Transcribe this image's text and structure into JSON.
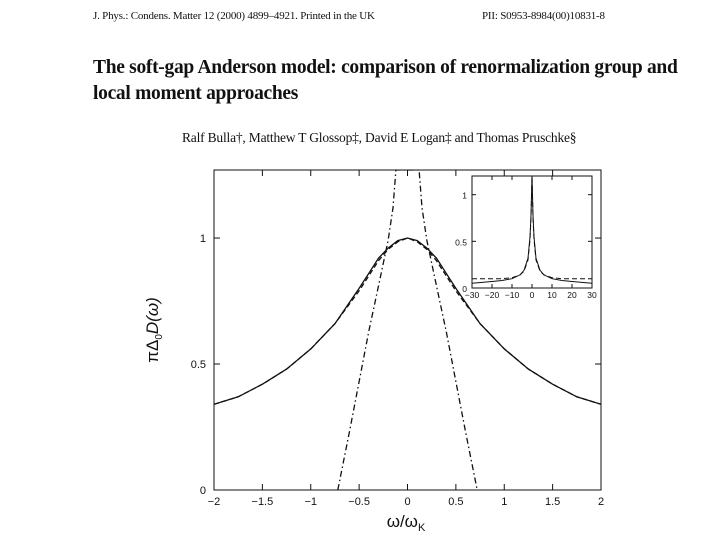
{
  "header": {
    "journal_line": "J. Phys.: Condens. Matter 12 (2000) 4899–4921. Printed in the UK",
    "pii": "PII: S0953-8984(00)10831-8"
  },
  "paper": {
    "title": "The soft-gap Anderson model: comparison of renormalization group and local moment approaches",
    "authors": "Ralf Bulla†, Matthew T Glossop‡, David E Logan‡ and Thomas Pruschke§"
  },
  "chart_data": [
    {
      "type": "line",
      "title": "",
      "xlabel": "ω/ω",
      "xlabel_sub": "K",
      "ylabel": "πΔ",
      "ylabel_sub": "0",
      "ylabel_tail": "D(ω)",
      "xlim": [
        -2,
        2
      ],
      "ylim": [
        0,
        1.27
      ],
      "x_ticks": [
        -2,
        -1.5,
        -1,
        -0.5,
        0,
        0.5,
        1,
        1.5,
        2
      ],
      "x_tick_labels": [
        "−2",
        "−1.5",
        "−1",
        "−0.5",
        "0",
        "0.5",
        "1",
        "1.5",
        "2"
      ],
      "y_ticks": [
        0,
        0.5,
        1
      ],
      "y_tick_labels": [
        "0",
        "0.5",
        "1"
      ],
      "grid": false,
      "series": [
        {
          "style": "solid",
          "x": [
            -2,
            -1.75,
            -1.5,
            -1.25,
            -1,
            -0.75,
            -0.5,
            -0.4,
            -0.3,
            -0.2,
            -0.1,
            0,
            0.1,
            0.2,
            0.3,
            0.4,
            0.5,
            0.75,
            1,
            1.25,
            1.5,
            1.75,
            2
          ],
          "y": [
            0.34,
            0.37,
            0.42,
            0.48,
            0.56,
            0.66,
            0.8,
            0.86,
            0.92,
            0.96,
            0.99,
            1.0,
            0.99,
            0.96,
            0.92,
            0.86,
            0.8,
            0.66,
            0.56,
            0.48,
            0.42,
            0.37,
            0.34
          ]
        },
        {
          "style": "dashed",
          "x": [
            -2,
            -1.75,
            -1.5,
            -1.25,
            -1,
            -0.75,
            -0.5,
            -0.4,
            -0.3,
            -0.2,
            -0.1,
            0,
            0.1,
            0.2,
            0.3,
            0.4,
            0.5,
            0.75,
            1,
            1.25,
            1.5,
            1.75,
            2
          ],
          "y": [
            0.34,
            0.37,
            0.42,
            0.48,
            0.56,
            0.66,
            0.79,
            0.85,
            0.91,
            0.955,
            0.985,
            1.0,
            0.985,
            0.955,
            0.91,
            0.85,
            0.79,
            0.66,
            0.56,
            0.48,
            0.42,
            0.37,
            0.34
          ]
        },
        {
          "style": "dash-dot",
          "x": [
            -0.72,
            -0.6,
            -0.5,
            -0.4,
            -0.3,
            -0.2,
            -0.15,
            -0.12,
            0.12,
            0.15,
            0.2,
            0.3,
            0.4,
            0.5,
            0.6,
            0.72
          ],
          "y": [
            0.0,
            0.23,
            0.43,
            0.63,
            0.81,
            0.99,
            1.12,
            1.27,
            1.27,
            1.12,
            0.99,
            0.81,
            0.63,
            0.43,
            0.23,
            0.0
          ]
        }
      ]
    },
    {
      "type": "line",
      "title": "",
      "inset": true,
      "xlim": [
        -30,
        30
      ],
      "ylim": [
        0,
        1.2
      ],
      "x_ticks": [
        -30,
        -20,
        -10,
        0,
        10,
        20,
        30
      ],
      "x_tick_labels": [
        "−30",
        "−20",
        "−10",
        "0",
        "10",
        "20",
        "30"
      ],
      "y_ticks": [
        0,
        0.5,
        1
      ],
      "y_tick_labels": [
        "0",
        "0.5",
        "1"
      ],
      "series": [
        {
          "style": "solid",
          "x": [
            -30,
            -25,
            -20,
            -15,
            -10,
            -6,
            -4,
            -2,
            -1,
            -0.5,
            0,
            0.5,
            1,
            2,
            4,
            6,
            10,
            15,
            20,
            25,
            30
          ],
          "y": [
            0.05,
            0.06,
            0.07,
            0.08,
            0.1,
            0.14,
            0.19,
            0.32,
            0.55,
            0.78,
            1.2,
            0.78,
            0.55,
            0.32,
            0.19,
            0.14,
            0.1,
            0.08,
            0.07,
            0.06,
            0.05
          ]
        },
        {
          "style": "dashed",
          "x": [
            -30,
            -25,
            -20,
            -15,
            -10,
            -6,
            -4,
            -2,
            -1,
            -0.5,
            0,
            0.5,
            1,
            2,
            4,
            6,
            10,
            15,
            20,
            25,
            30
          ],
          "y": [
            0.1,
            0.1,
            0.1,
            0.1,
            0.11,
            0.14,
            0.18,
            0.3,
            0.52,
            0.75,
            1.2,
            0.75,
            0.52,
            0.3,
            0.18,
            0.14,
            0.11,
            0.1,
            0.1,
            0.1,
            0.1
          ]
        }
      ]
    }
  ]
}
